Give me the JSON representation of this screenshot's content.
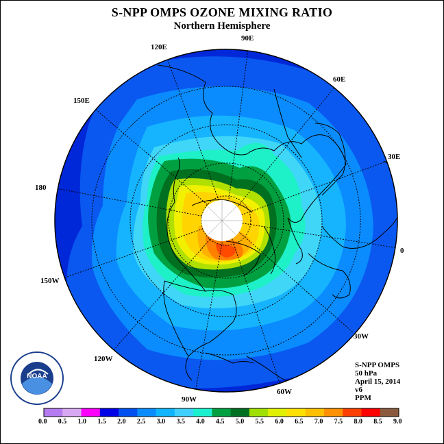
{
  "title": "S-NPP OMPS OZONE MIXING RATIO",
  "subtitle": "Northern Hemisphere",
  "longitude_labels": {
    "lon_90e": "90E",
    "lon_60e": "60E",
    "lon_30e": "30E",
    "lon_0": "0",
    "lon_30w": "30W",
    "lon_60w": "60W",
    "lon_90w": "90W",
    "lon_120w": "120W",
    "lon_150w": "150W",
    "lon_180": "180",
    "lon_150e": "150E",
    "lon_120e": "120E"
  },
  "info": {
    "instrument": "S-NPP OMPS",
    "level": "50 hPa",
    "date": "April 15, 2014",
    "version": "v6",
    "units": "PPM"
  },
  "logo_text": "NOAA",
  "colorbar": {
    "ticks": [
      "0.0",
      "0.5",
      "1.0",
      "1.5",
      "2.0",
      "2.5",
      "3.0",
      "3.5",
      "4.0",
      "4.5",
      "5.0",
      "5.5",
      "6.0",
      "6.5",
      "7.0",
      "7.5",
      "8.0",
      "8.5",
      "9.0"
    ],
    "colors": [
      "#b57cf0",
      "#d9a8f2",
      "#ff00ff",
      "#0000e6",
      "#0050f0",
      "#0a8cff",
      "#10b4ff",
      "#3fd0ff",
      "#1af0d0",
      "#00a040",
      "#007020",
      "#a0e000",
      "#e0f000",
      "#ffe000",
      "#ffc000",
      "#ff9000",
      "#ff4000",
      "#ff0000",
      "#8b5a3c"
    ]
  }
}
